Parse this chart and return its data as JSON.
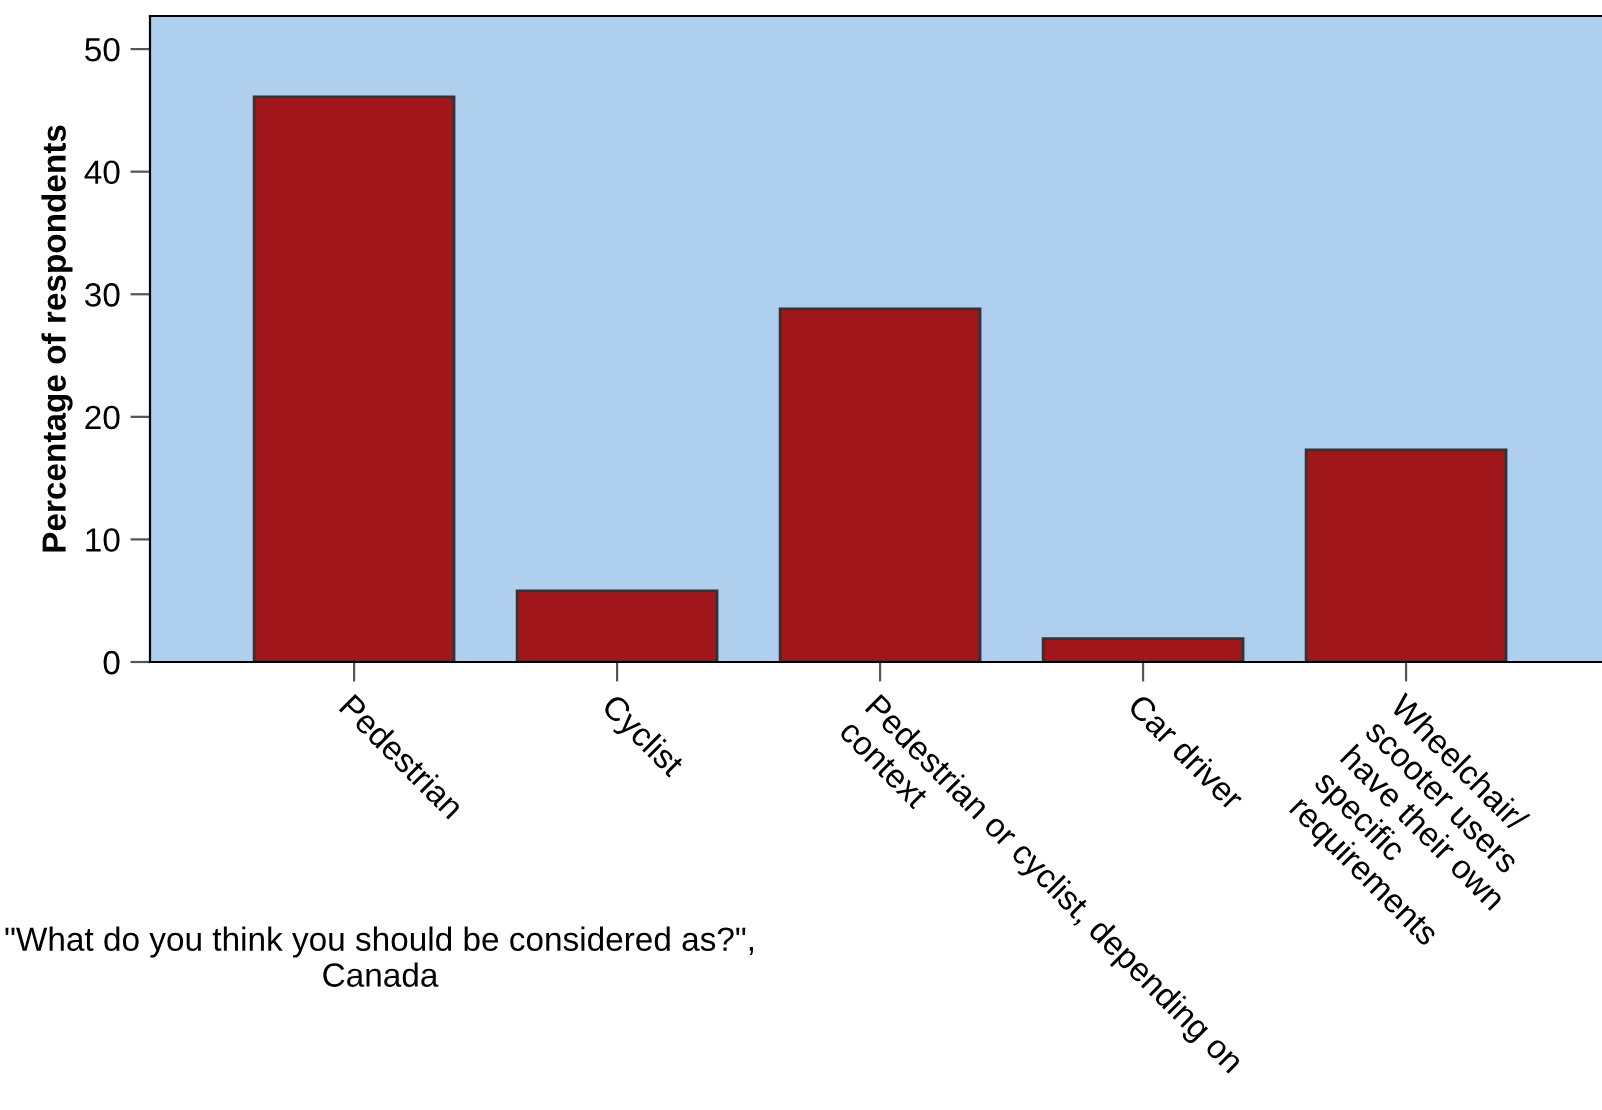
{
  "chart_data": {
    "type": "bar",
    "categories": [
      "Pedestrian",
      "Cyclist",
      "Pedestrian or cyclist, depending on\ncontext",
      "Car driver",
      "Wheelchair/\nscooter users\nhave their own\nspecific\nrequirements"
    ],
    "values": [
      46.1,
      5.8,
      28.8,
      1.9,
      17.3
    ],
    "color": "#a0161b",
    "ylabel": "Percentage of respondents",
    "xlabel": "\"What do you think you should be considered as?\",\nCanada",
    "ylim": [
      0,
      52.7
    ],
    "yticks": [
      0,
      10,
      20,
      30,
      40,
      50
    ],
    "grid": false
  }
}
